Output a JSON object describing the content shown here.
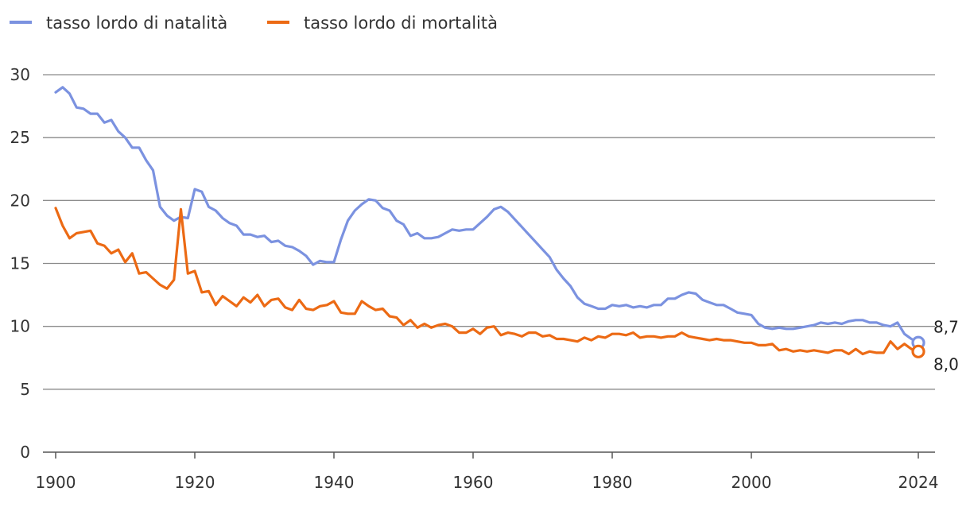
{
  "chart_data": {
    "type": "line",
    "xlim": [
      1900,
      2024
    ],
    "ylim": [
      0,
      30
    ],
    "x_ticks": [
      "1900",
      "1920",
      "1940",
      "1960",
      "1980",
      "2000",
      "2024"
    ],
    "y_ticks": [
      "0",
      "5",
      "10",
      "15",
      "20",
      "25",
      "30"
    ],
    "grid": true,
    "legend_position": "top-left",
    "series": [
      {
        "name": "tasso lordo di natalità",
        "color": "#7b92e0",
        "end_label": "8,7",
        "points": [
          [
            1900,
            28.6
          ],
          [
            1901,
            29.0
          ],
          [
            1902,
            28.5
          ],
          [
            1903,
            27.4
          ],
          [
            1904,
            27.3
          ],
          [
            1905,
            26.9
          ],
          [
            1906,
            26.9
          ],
          [
            1907,
            26.2
          ],
          [
            1908,
            26.4
          ],
          [
            1909,
            25.5
          ],
          [
            1910,
            25.0
          ],
          [
            1911,
            24.2
          ],
          [
            1912,
            24.2
          ],
          [
            1913,
            23.2
          ],
          [
            1914,
            22.4
          ],
          [
            1915,
            19.5
          ],
          [
            1916,
            18.8
          ],
          [
            1917,
            18.4
          ],
          [
            1918,
            18.7
          ],
          [
            1919,
            18.6
          ],
          [
            1920,
            20.9
          ],
          [
            1921,
            20.7
          ],
          [
            1922,
            19.5
          ],
          [
            1923,
            19.2
          ],
          [
            1924,
            18.6
          ],
          [
            1925,
            18.2
          ],
          [
            1926,
            18.0
          ],
          [
            1927,
            17.3
          ],
          [
            1928,
            17.3
          ],
          [
            1929,
            17.1
          ],
          [
            1930,
            17.2
          ],
          [
            1931,
            16.7
          ],
          [
            1932,
            16.8
          ],
          [
            1933,
            16.4
          ],
          [
            1934,
            16.3
          ],
          [
            1935,
            16.0
          ],
          [
            1936,
            15.6
          ],
          [
            1937,
            14.9
          ],
          [
            1938,
            15.2
          ],
          [
            1939,
            15.1
          ],
          [
            1940,
            15.1
          ],
          [
            1941,
            16.9
          ],
          [
            1942,
            18.4
          ],
          [
            1943,
            19.2
          ],
          [
            1944,
            19.7
          ],
          [
            1945,
            20.1
          ],
          [
            1946,
            20.0
          ],
          [
            1947,
            19.4
          ],
          [
            1948,
            19.2
          ],
          [
            1949,
            18.4
          ],
          [
            1950,
            18.1
          ],
          [
            1951,
            17.2
          ],
          [
            1952,
            17.4
          ],
          [
            1953,
            17.0
          ],
          [
            1954,
            17.0
          ],
          [
            1955,
            17.1
          ],
          [
            1956,
            17.4
          ],
          [
            1957,
            17.7
          ],
          [
            1958,
            17.6
          ],
          [
            1959,
            17.7
          ],
          [
            1960,
            17.7
          ],
          [
            1961,
            18.2
          ],
          [
            1962,
            18.7
          ],
          [
            1963,
            19.3
          ],
          [
            1964,
            19.5
          ],
          [
            1965,
            19.1
          ],
          [
            1966,
            18.5
          ],
          [
            1967,
            17.9
          ],
          [
            1968,
            17.3
          ],
          [
            1969,
            16.7
          ],
          [
            1970,
            16.1
          ],
          [
            1971,
            15.5
          ],
          [
            1972,
            14.5
          ],
          [
            1973,
            13.8
          ],
          [
            1974,
            13.2
          ],
          [
            1975,
            12.3
          ],
          [
            1976,
            11.8
          ],
          [
            1977,
            11.6
          ],
          [
            1978,
            11.4
          ],
          [
            1979,
            11.4
          ],
          [
            1980,
            11.7
          ],
          [
            1981,
            11.6
          ],
          [
            1982,
            11.7
          ],
          [
            1983,
            11.5
          ],
          [
            1984,
            11.6
          ],
          [
            1985,
            11.5
          ],
          [
            1986,
            11.7
          ],
          [
            1987,
            11.7
          ],
          [
            1988,
            12.2
          ],
          [
            1989,
            12.2
          ],
          [
            1990,
            12.5
          ],
          [
            1991,
            12.7
          ],
          [
            1992,
            12.6
          ],
          [
            1993,
            12.1
          ],
          [
            1994,
            11.9
          ],
          [
            1995,
            11.7
          ],
          [
            1996,
            11.7
          ],
          [
            1997,
            11.4
          ],
          [
            1998,
            11.1
          ],
          [
            1999,
            11.0
          ],
          [
            2000,
            10.9
          ],
          [
            2001,
            10.2
          ],
          [
            2002,
            9.9
          ],
          [
            2003,
            9.8
          ],
          [
            2004,
            9.9
          ],
          [
            2005,
            9.8
          ],
          [
            2006,
            9.8
          ],
          [
            2007,
            9.9
          ],
          [
            2008,
            10.0
          ],
          [
            2009,
            10.1
          ],
          [
            2010,
            10.3
          ],
          [
            2011,
            10.2
          ],
          [
            2012,
            10.3
          ],
          [
            2013,
            10.2
          ],
          [
            2014,
            10.4
          ],
          [
            2015,
            10.5
          ],
          [
            2016,
            10.5
          ],
          [
            2017,
            10.3
          ],
          [
            2018,
            10.3
          ],
          [
            2019,
            10.1
          ],
          [
            2020,
            10.0
          ],
          [
            2021,
            10.3
          ],
          [
            2022,
            9.4
          ],
          [
            2023,
            9.0
          ],
          [
            2024,
            8.7
          ]
        ]
      },
      {
        "name": "tasso lordo di mortalità",
        "color": "#ec6a14",
        "end_label": "8,0",
        "points": [
          [
            1900,
            19.4
          ],
          [
            1901,
            18.0
          ],
          [
            1902,
            17.0
          ],
          [
            1903,
            17.4
          ],
          [
            1904,
            17.5
          ],
          [
            1905,
            17.6
          ],
          [
            1906,
            16.6
          ],
          [
            1907,
            16.4
          ],
          [
            1908,
            15.8
          ],
          [
            1909,
            16.1
          ],
          [
            1910,
            15.1
          ],
          [
            1911,
            15.8
          ],
          [
            1912,
            14.2
          ],
          [
            1913,
            14.3
          ],
          [
            1914,
            13.8
          ],
          [
            1915,
            13.3
          ],
          [
            1916,
            13.0
          ],
          [
            1917,
            13.7
          ],
          [
            1918,
            19.3
          ],
          [
            1919,
            14.2
          ],
          [
            1920,
            14.4
          ],
          [
            1921,
            12.7
          ],
          [
            1922,
            12.8
          ],
          [
            1923,
            11.7
          ],
          [
            1924,
            12.4
          ],
          [
            1925,
            12.0
          ],
          [
            1926,
            11.6
          ],
          [
            1927,
            12.3
          ],
          [
            1928,
            11.9
          ],
          [
            1929,
            12.5
          ],
          [
            1930,
            11.6
          ],
          [
            1931,
            12.1
          ],
          [
            1932,
            12.2
          ],
          [
            1933,
            11.5
          ],
          [
            1934,
            11.3
          ],
          [
            1935,
            12.1
          ],
          [
            1936,
            11.4
          ],
          [
            1937,
            11.3
          ],
          [
            1938,
            11.6
          ],
          [
            1939,
            11.7
          ],
          [
            1940,
            12.0
          ],
          [
            1941,
            11.1
          ],
          [
            1942,
            11.0
          ],
          [
            1943,
            11.0
          ],
          [
            1944,
            12.0
          ],
          [
            1945,
            11.6
          ],
          [
            1946,
            11.3
          ],
          [
            1947,
            11.4
          ],
          [
            1948,
            10.8
          ],
          [
            1949,
            10.7
          ],
          [
            1950,
            10.1
          ],
          [
            1951,
            10.5
          ],
          [
            1952,
            9.9
          ],
          [
            1953,
            10.2
          ],
          [
            1954,
            9.9
          ],
          [
            1955,
            10.1
          ],
          [
            1956,
            10.2
          ],
          [
            1957,
            10.0
          ],
          [
            1958,
            9.5
          ],
          [
            1959,
            9.5
          ],
          [
            1960,
            9.8
          ],
          [
            1961,
            9.4
          ],
          [
            1962,
            9.9
          ],
          [
            1963,
            10.0
          ],
          [
            1964,
            9.3
          ],
          [
            1965,
            9.5
          ],
          [
            1966,
            9.4
          ],
          [
            1967,
            9.2
          ],
          [
            1968,
            9.5
          ],
          [
            1969,
            9.5
          ],
          [
            1970,
            9.2
          ],
          [
            1971,
            9.3
          ],
          [
            1972,
            9.0
          ],
          [
            1973,
            9.0
          ],
          [
            1974,
            8.9
          ],
          [
            1975,
            8.8
          ],
          [
            1976,
            9.1
          ],
          [
            1977,
            8.9
          ],
          [
            1978,
            9.2
          ],
          [
            1979,
            9.1
          ],
          [
            1980,
            9.4
          ],
          [
            1981,
            9.4
          ],
          [
            1982,
            9.3
          ],
          [
            1983,
            9.5
          ],
          [
            1984,
            9.1
          ],
          [
            1985,
            9.2
          ],
          [
            1986,
            9.2
          ],
          [
            1987,
            9.1
          ],
          [
            1988,
            9.2
          ],
          [
            1989,
            9.2
          ],
          [
            1990,
            9.5
          ],
          [
            1991,
            9.2
          ],
          [
            1992,
            9.1
          ],
          [
            1993,
            9.0
          ],
          [
            1994,
            8.9
          ],
          [
            1995,
            9.0
          ],
          [
            1996,
            8.9
          ],
          [
            1997,
            8.9
          ],
          [
            1998,
            8.8
          ],
          [
            1999,
            8.7
          ],
          [
            2000,
            8.7
          ],
          [
            2001,
            8.5
          ],
          [
            2002,
            8.5
          ],
          [
            2003,
            8.6
          ],
          [
            2004,
            8.1
          ],
          [
            2005,
            8.2
          ],
          [
            2006,
            8.0
          ],
          [
            2007,
            8.1
          ],
          [
            2008,
            8.0
          ],
          [
            2009,
            8.1
          ],
          [
            2010,
            8.0
          ],
          [
            2011,
            7.9
          ],
          [
            2012,
            8.1
          ],
          [
            2013,
            8.1
          ],
          [
            2014,
            7.8
          ],
          [
            2015,
            8.2
          ],
          [
            2016,
            7.8
          ],
          [
            2017,
            8.0
          ],
          [
            2018,
            7.9
          ],
          [
            2019,
            7.9
          ],
          [
            2020,
            8.8
          ],
          [
            2021,
            8.2
          ],
          [
            2022,
            8.6
          ],
          [
            2023,
            8.2
          ],
          [
            2024,
            8.0
          ]
        ]
      }
    ]
  }
}
